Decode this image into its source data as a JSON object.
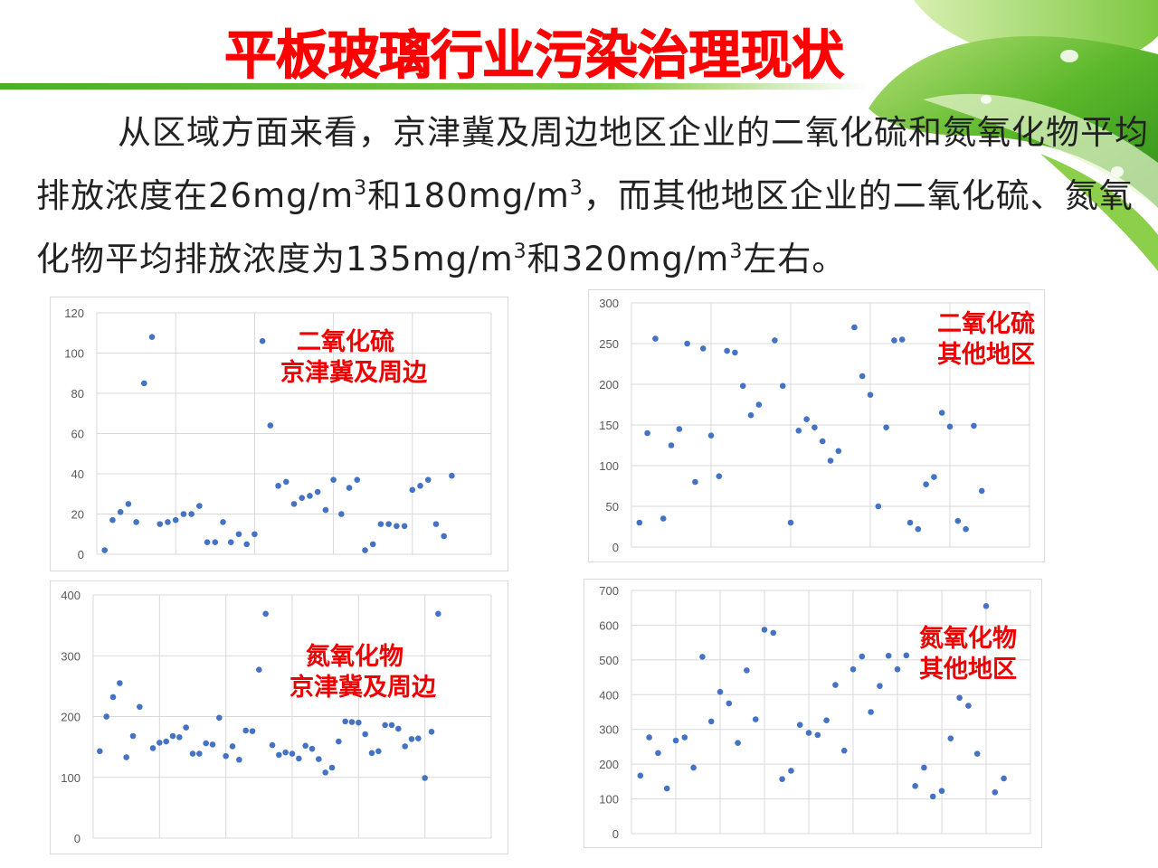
{
  "slide": {
    "title": "平板玻璃行业污染治理现状",
    "paragraph": [
      {
        "text": "从区域方面来看，京津冀及周边地区企业的二氧化硫和氮氧化物平均排放浓度在26mg/m"
      },
      {
        "sup": "3"
      },
      {
        "text": "和180mg/m"
      },
      {
        "sup": "3"
      },
      {
        "text": "，而其他地区企业的二氧化硫、氮氧化物平均排放浓度为135mg/m"
      },
      {
        "sup": "3"
      },
      {
        "text": "和320mg/m"
      },
      {
        "sup": "3"
      },
      {
        "text": "左右。"
      }
    ],
    "colors": {
      "title": "#ff0000",
      "annotation": "#ee0000",
      "marker": "#4472c4",
      "grid": "#d9d9d9",
      "accent_line": "#4caf22"
    },
    "decoration": "green-leaf-with-water-drops"
  },
  "chart_data": [
    {
      "type": "scatter",
      "annotation": [
        "二氧化硫",
        "京津冀及周边"
      ],
      "xlim": [
        0,
        50
      ],
      "xgrid_step": 10,
      "x_tick_labels": false,
      "ylim": [
        0,
        120
      ],
      "yticks": [
        0,
        20,
        40,
        60,
        80,
        100,
        120
      ],
      "grid": true,
      "marker_color": "#4472c4",
      "y": [
        2,
        17,
        21,
        25,
        16,
        85,
        108,
        15,
        16,
        17,
        20,
        20,
        24,
        6,
        6,
        16,
        6,
        10,
        5,
        10,
        106,
        64,
        34,
        36,
        25,
        28,
        29,
        31,
        22,
        37,
        20,
        33,
        37,
        2,
        5,
        15,
        15,
        14,
        14,
        32,
        34,
        37,
        15,
        9,
        39
      ]
    },
    {
      "type": "scatter",
      "annotation": [
        "二氧化硫",
        "其他地区"
      ],
      "xlim": [
        0,
        50
      ],
      "xgrid_step": 10,
      "x_tick_labels": false,
      "ylim": [
        0,
        300
      ],
      "yticks": [
        0,
        50,
        100,
        150,
        200,
        250,
        300
      ],
      "grid": true,
      "marker_color": "#4472c4",
      "y": [
        30,
        140,
        256,
        35,
        125,
        145,
        250,
        80,
        244,
        137,
        87,
        241,
        239,
        198,
        162,
        175,
        null,
        254,
        198,
        30,
        143,
        157,
        147,
        130,
        106,
        118,
        null,
        270,
        210,
        187,
        50,
        147,
        254,
        255,
        30,
        22,
        77,
        86,
        165,
        148,
        32,
        22,
        149,
        69
      ]
    },
    {
      "type": "scatter",
      "annotation": [
        "氮氧化物",
        "京津冀及周边"
      ],
      "xlim": [
        0,
        60
      ],
      "xgrid_step": 10,
      "x_tick_labels": false,
      "ylim": [
        0,
        400
      ],
      "yticks": [
        0,
        100,
        200,
        300,
        400
      ],
      "grid": true,
      "marker_color": "#4472c4",
      "y": [
        143,
        200,
        232,
        255,
        133,
        168,
        216,
        null,
        148,
        157,
        159,
        168,
        166,
        182,
        139,
        139,
        156,
        154,
        198,
        135,
        151,
        129,
        177,
        176,
        277,
        369,
        153,
        137,
        141,
        139,
        131,
        152,
        147,
        130,
        108,
        116,
        159,
        192,
        191,
        190,
        171,
        140,
        143,
        186,
        186,
        180,
        151,
        163,
        164,
        99,
        175,
        369
      ]
    },
    {
      "type": "scatter",
      "annotation": [
        "氮氧化物",
        "其他地区"
      ],
      "xlim": [
        0,
        45
      ],
      "xgrid_step": 5,
      "x_tick_labels": false,
      "ylim": [
        0,
        700
      ],
      "yticks": [
        0,
        100,
        200,
        300,
        400,
        500,
        600,
        700
      ],
      "grid": true,
      "marker_color": "#4472c4",
      "y": [
        167,
        277,
        232,
        130,
        268,
        277,
        190,
        509,
        323,
        408,
        375,
        261,
        470,
        329,
        587,
        578,
        157,
        181,
        313,
        290,
        284,
        326,
        428,
        239,
        473,
        510,
        350,
        425,
        512,
        473,
        513,
        137,
        190,
        107,
        123,
        274,
        391,
        368,
        230,
        655,
        119,
        159
      ]
    }
  ]
}
